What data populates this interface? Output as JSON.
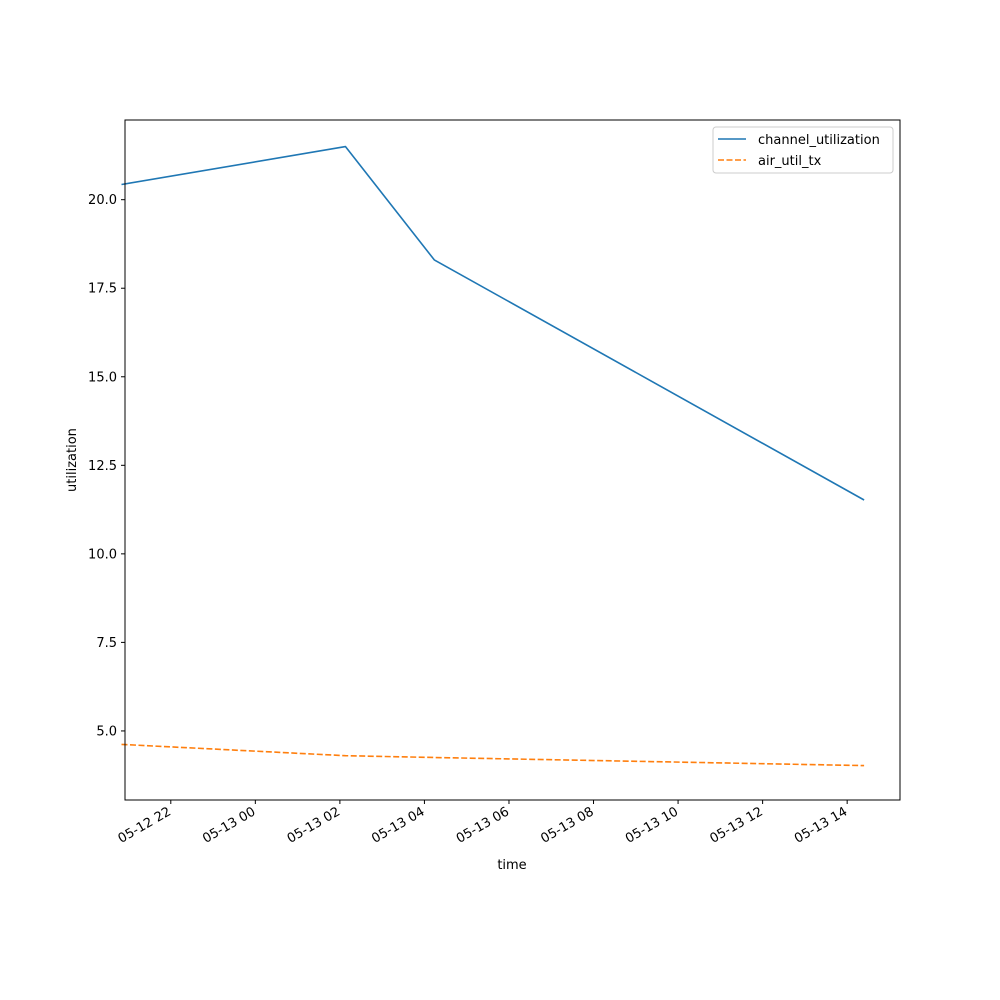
{
  "chart_data": {
    "type": "line",
    "xlabel": "time",
    "ylabel": "utilization",
    "x_ticks": [
      "05-12 22",
      "05-13 00",
      "05-13 02",
      "05-13 04",
      "05-13 06",
      "05-13 08",
      "05-13 10",
      "05-13 12",
      "05-13 14"
    ],
    "y_ticks": [
      "5.0",
      "7.5",
      "10.0",
      "12.5",
      "15.0",
      "17.5",
      "20.0"
    ],
    "xlim": [
      "2024-05-12 20:55",
      "2024-05-13 15:15"
    ],
    "ylim": [
      3.05,
      22.25
    ],
    "grid": false,
    "legend_position": "top-right",
    "series": [
      {
        "name": "channel_utilization",
        "color": "#1f77b4",
        "dash": "solid",
        "points": [
          {
            "x": "2024-05-12 20:50",
            "y": 20.43
          },
          {
            "x": "2024-05-13 02:08",
            "y": 21.5
          },
          {
            "x": "2024-05-13 04:14",
            "y": 18.3
          },
          {
            "x": "2024-05-13 14:24",
            "y": 11.52
          }
        ]
      },
      {
        "name": "air_util_tx",
        "color": "#ff7f0e",
        "dash": "dashed",
        "points": [
          {
            "x": "2024-05-12 20:50",
            "y": 4.62
          },
          {
            "x": "2024-05-13 02:08",
            "y": 4.3
          },
          {
            "x": "2024-05-13 04:14",
            "y": 4.25
          },
          {
            "x": "2024-05-13 14:24",
            "y": 4.02
          }
        ]
      }
    ]
  }
}
